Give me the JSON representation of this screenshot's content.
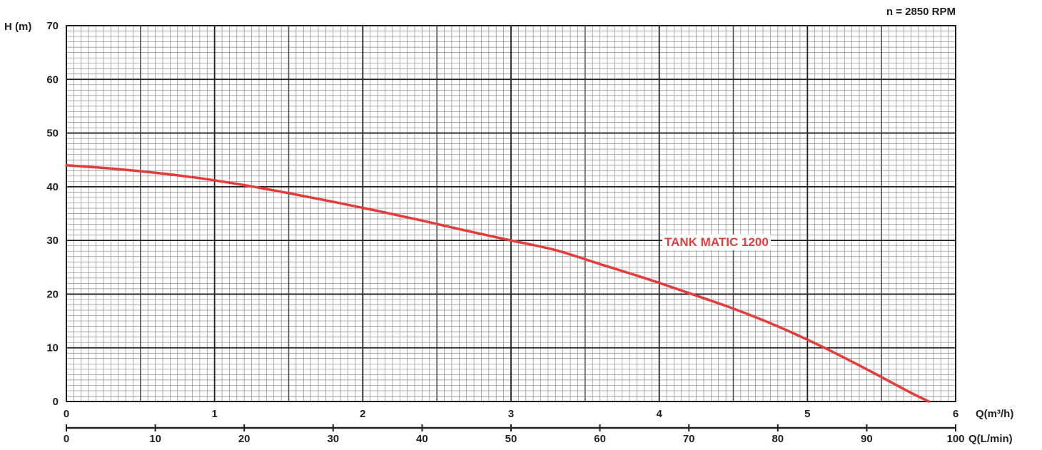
{
  "chart_data": {
    "type": "line",
    "title": "",
    "annotation": "n = 2850 RPM",
    "ylabel": "H (m)",
    "xlabel_primary": "Q(m³/h)",
    "xlabel_secondary": "Q(L/min)",
    "ylim": [
      0,
      70
    ],
    "xlim_primary": [
      0,
      6
    ],
    "xlim_secondary": [
      0,
      100
    ],
    "yticks": [
      "0",
      "10",
      "20",
      "30",
      "40",
      "50",
      "60",
      "70"
    ],
    "xticks_primary": [
      "0",
      "1",
      "2",
      "3",
      "4",
      "5",
      "6"
    ],
    "xticks_secondary": [
      "0",
      "10",
      "20",
      "30",
      "40",
      "50",
      "60",
      "70",
      "80",
      "90",
      "100"
    ],
    "grid": true,
    "series": [
      {
        "name": "TANK MATIC 1200",
        "color": "#e63b3b",
        "x_unit": "L/min",
        "x": [
          0,
          5,
          10,
          15,
          20,
          25,
          30,
          35,
          40,
          45,
          50,
          55,
          60,
          65,
          70,
          75,
          80,
          85,
          90,
          95,
          97
        ],
        "y": [
          44,
          43.4,
          42.6,
          41.6,
          40.3,
          38.8,
          37.2,
          35.5,
          33.7,
          31.8,
          30,
          28.2,
          25.6,
          23,
          20.2,
          17.3,
          14,
          10.2,
          6,
          1.6,
          0
        ]
      }
    ]
  }
}
